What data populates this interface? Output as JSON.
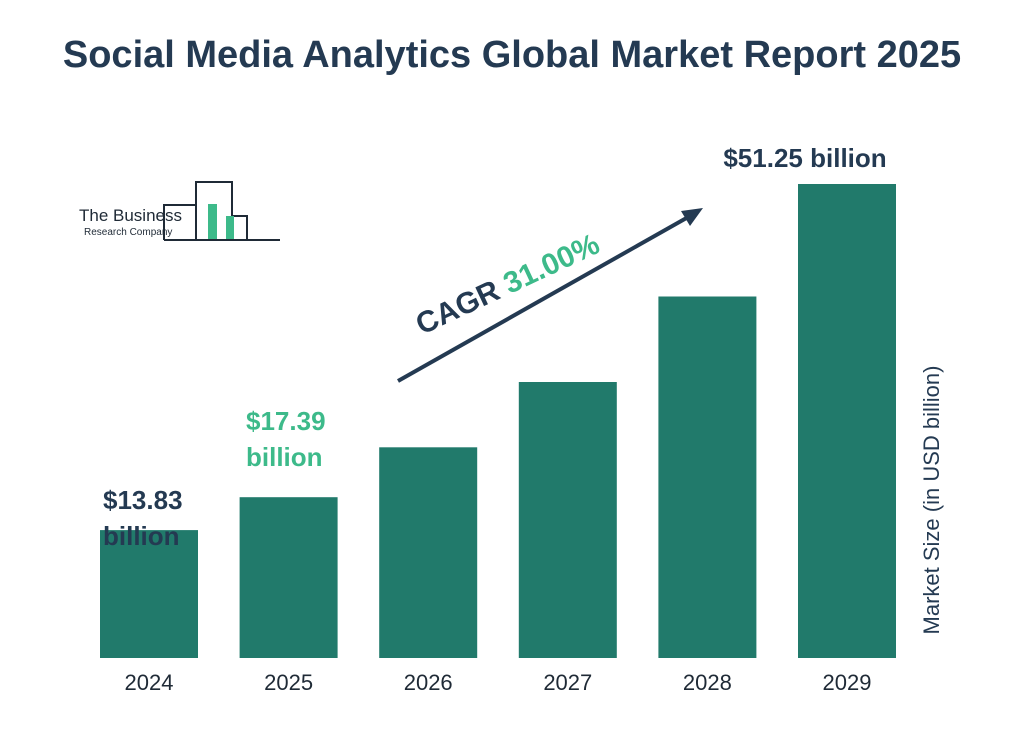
{
  "title": "Social Media Analytics Global Market Report 2025",
  "logo": {
    "line1": "The Business",
    "line2": "Research Company"
  },
  "cagr": {
    "label": "CAGR",
    "value": "31.00%"
  },
  "colors": {
    "bar": "#217a6b",
    "title": "#243a52",
    "highlight": "#3dba8a",
    "axis": "#1f2a36"
  },
  "chart_data": {
    "type": "bar",
    "title": "Social Media Analytics Global Market Report 2025",
    "categories": [
      "2024",
      "2025",
      "2026",
      "2027",
      "2028",
      "2029"
    ],
    "values": [
      13.83,
      17.39,
      22.78,
      29.84,
      39.09,
      51.25
    ],
    "data_labels": [
      {
        "index": 0,
        "amount": "$13.83",
        "unit": "billion"
      },
      {
        "index": 1,
        "amount": "$17.39",
        "unit": "billion"
      },
      {
        "index": 5,
        "amount": "$51.25",
        "unit": "billion"
      }
    ],
    "xlabel": "",
    "ylabel": "Market Size (in USD billion)",
    "ylim": [
      0,
      51.25
    ],
    "grid": false,
    "legend": "none"
  }
}
